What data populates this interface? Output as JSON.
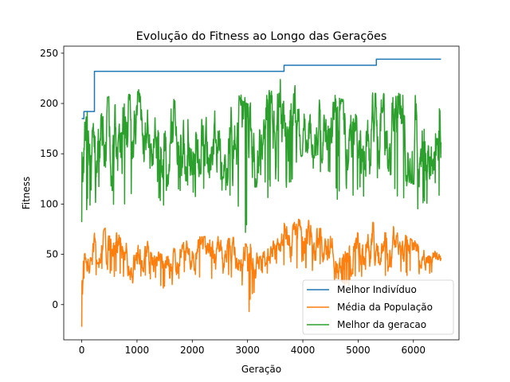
{
  "chart_data": {
    "type": "line",
    "title": "Evolução do Fitness ao Longo das Gerações",
    "xlabel": "Geração",
    "ylabel": "Fitness",
    "xlim": [
      -325,
      6825
    ],
    "ylim": [
      -35,
      257
    ],
    "xticks": [
      0,
      1000,
      2000,
      3000,
      4000,
      5000,
      6000
    ],
    "yticks": [
      0,
      50,
      100,
      150,
      200,
      250
    ],
    "grid": false,
    "legend_position": "lower-right",
    "series": [
      {
        "name": "Melhor Indivíduo",
        "color": "#1f77b4",
        "style": "step",
        "steps": [
          [
            0,
            185
          ],
          [
            40,
            192
          ],
          [
            230,
            232
          ],
          [
            3660,
            238
          ],
          [
            5330,
            244
          ],
          [
            6500,
            244
          ]
        ]
      },
      {
        "name": "Média da População",
        "color": "#ff7f0e",
        "style": "noisy",
        "x_start": 0,
        "x_end": 6500,
        "n_points": 1300,
        "band_low": [
          [
            0,
            -22
          ],
          [
            50,
            25
          ],
          [
            300,
            40
          ],
          [
            700,
            35
          ],
          [
            900,
            25
          ],
          [
            1200,
            35
          ],
          [
            1500,
            20
          ],
          [
            1900,
            35
          ],
          [
            2300,
            30
          ],
          [
            2700,
            35
          ],
          [
            2900,
            25
          ],
          [
            3000,
            0
          ],
          [
            3200,
            35
          ],
          [
            3600,
            45
          ],
          [
            4000,
            45
          ],
          [
            4400,
            40
          ],
          [
            4800,
            25
          ],
          [
            5200,
            40
          ],
          [
            5600,
            35
          ],
          [
            6000,
            35
          ],
          [
            6500,
            35
          ]
        ],
        "band_high": [
          [
            0,
            65
          ],
          [
            50,
            60
          ],
          [
            300,
            80
          ],
          [
            700,
            70
          ],
          [
            900,
            60
          ],
          [
            1200,
            65
          ],
          [
            1500,
            55
          ],
          [
            1900,
            68
          ],
          [
            2300,
            70
          ],
          [
            2700,
            70
          ],
          [
            3000,
            60
          ],
          [
            3200,
            70
          ],
          [
            3600,
            80
          ],
          [
            4000,
            88
          ],
          [
            4400,
            80
          ],
          [
            4800,
            62
          ],
          [
            5200,
            85
          ],
          [
            5600,
            80
          ],
          [
            6000,
            65
          ],
          [
            6500,
            50
          ]
        ]
      },
      {
        "name": "Melhor da geracao",
        "color": "#2ca02c",
        "style": "noisy",
        "x_start": 0,
        "x_end": 6500,
        "n_points": 1300,
        "band_low": [
          [
            0,
            82
          ],
          [
            50,
            110
          ],
          [
            300,
            125
          ],
          [
            700,
            110
          ],
          [
            1000,
            135
          ],
          [
            1200,
            145
          ],
          [
            1500,
            115
          ],
          [
            2000,
            125
          ],
          [
            2400,
            130
          ],
          [
            2800,
            110
          ],
          [
            3000,
            95
          ],
          [
            3200,
            120
          ],
          [
            3600,
            135
          ],
          [
            4000,
            145
          ],
          [
            4400,
            140
          ],
          [
            4800,
            110
          ],
          [
            5200,
            135
          ],
          [
            5600,
            125
          ],
          [
            6000,
            115
          ],
          [
            6500,
            125
          ]
        ],
        "band_high": [
          [
            0,
            190
          ],
          [
            50,
            195
          ],
          [
            300,
            210
          ],
          [
            700,
            212
          ],
          [
            1000,
            215
          ],
          [
            1200,
            208
          ],
          [
            1500,
            205
          ],
          [
            2000,
            210
          ],
          [
            2400,
            210
          ],
          [
            2800,
            212
          ],
          [
            3000,
            205
          ],
          [
            3200,
            205
          ],
          [
            3600,
            225
          ],
          [
            4000,
            215
          ],
          [
            4400,
            212
          ],
          [
            4800,
            205
          ],
          [
            5200,
            215
          ],
          [
            5600,
            212
          ],
          [
            6000,
            210
          ],
          [
            6500,
            195
          ]
        ]
      }
    ]
  }
}
